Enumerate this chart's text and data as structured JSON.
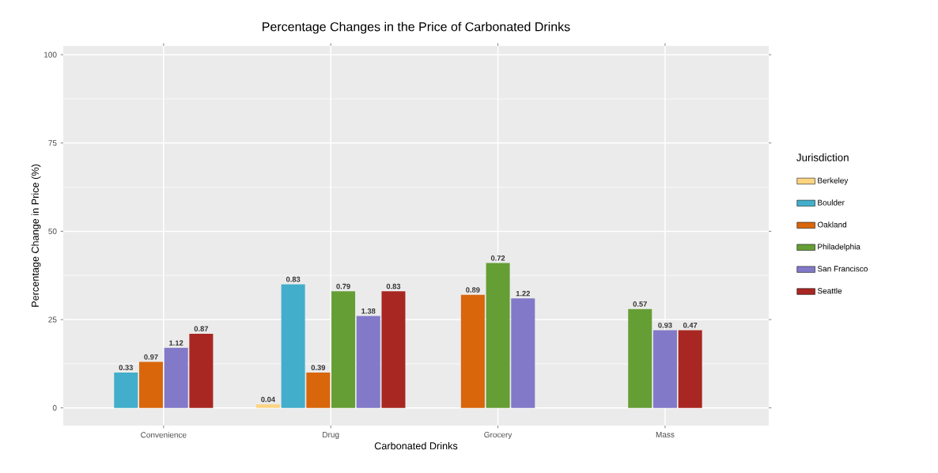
{
  "chart_data": {
    "type": "bar",
    "title": "Percentage Changes in the Price of Carbonated Drinks",
    "xlabel": "Carbonated Drinks",
    "ylabel": "Percentage Change in Price (%)",
    "legend_title": "Jurisdiction",
    "categories": [
      "Convenience",
      "Drug",
      "Grocery",
      "Mass"
    ],
    "series": [
      {
        "name": "Berkeley",
        "color": "#fdd480",
        "values": [
          null,
          1,
          null,
          null
        ]
      },
      {
        "name": "Boulder",
        "color": "#42aecb",
        "values": [
          10,
          35,
          null,
          null
        ]
      },
      {
        "name": "Oakland",
        "color": "#d9660b",
        "values": [
          13,
          10,
          32,
          null
        ]
      },
      {
        "name": "Philadelphia",
        "color": "#659e35",
        "values": [
          null,
          33,
          41,
          28
        ]
      },
      {
        "name": "San Francisco",
        "color": "#8279c8",
        "values": [
          17,
          26,
          31,
          22
        ]
      },
      {
        "name": "Seattle",
        "color": "#a82722",
        "values": [
          21,
          33,
          null,
          22
        ]
      }
    ],
    "annotations": [
      "0.04",
      "0.33",
      "0.83",
      "0.97",
      "0.39",
      "0.89",
      "0.79",
      "0.72",
      "0.57",
      "1.12",
      "1.38",
      "1.22",
      "0.93",
      "0.87",
      "0.83",
      "0.47"
    ],
    "ylim": [
      -5,
      102.5
    ],
    "yticks": [
      0,
      25,
      50,
      75,
      100
    ],
    "grid": true,
    "legend": "right"
  }
}
